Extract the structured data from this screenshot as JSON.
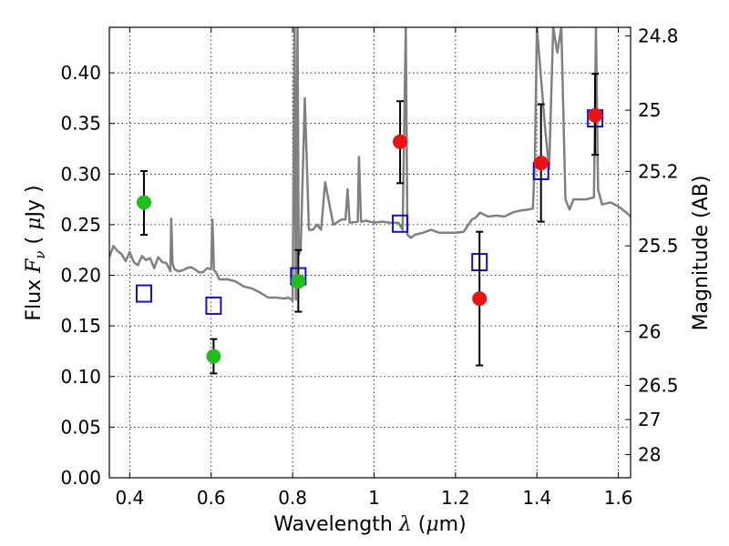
{
  "chart_data": {
    "type": "scatter",
    "x_axis": {
      "label_prefix": "Wavelength",
      "label_symbol": "λ",
      "label_unit_open": "(",
      "label_unit_mu": "μ",
      "label_unit_rest": "m)",
      "range": [
        0.35,
        1.63
      ],
      "ticks": [
        0.4,
        0.6,
        0.8,
        1.0,
        1.2,
        1.4,
        1.6
      ],
      "tick_labels": [
        "0.4",
        "0.6",
        "0.8",
        "1",
        "1.2",
        "1.4",
        "1.6"
      ]
    },
    "y_axis": {
      "label_prefix": "Flux",
      "label_symbol": "F",
      "label_subscript": "ν",
      "label_unit_open": "(",
      "label_unit_mu": "μ",
      "label_unit_rest": "Jy )",
      "range": [
        0.0,
        0.445
      ],
      "ticks": [
        0.0,
        0.05,
        0.1,
        0.15,
        0.2,
        0.25,
        0.3,
        0.35,
        0.4
      ],
      "tick_labels": [
        "0.00",
        "0.05",
        "0.10",
        "0.15",
        "0.20",
        "0.25",
        "0.30",
        "0.35",
        "0.40"
      ]
    },
    "y2_axis": {
      "label": "Magnitude (AB)",
      "ticks": [
        {
          "flux": 0.4365,
          "label": "24.8"
        },
        {
          "flux": 0.3631,
          "label": "25"
        },
        {
          "flux": 0.3027,
          "label": "25.2"
        },
        {
          "flux": 0.2291,
          "label": "25.5"
        },
        {
          "flux": 0.1445,
          "label": "26"
        },
        {
          "flux": 0.0912,
          "label": "26.5"
        },
        {
          "flux": 0.0575,
          "label": "27"
        },
        {
          "flux": 0.0229,
          "label": "28"
        }
      ]
    },
    "grid": true,
    "series": [
      {
        "name": "photometry-green",
        "marker": "circle",
        "color": "#1fbf1f",
        "points": [
          {
            "x": 0.435,
            "y": 0.272,
            "err_low": 0.24,
            "err_high": 0.303
          },
          {
            "x": 0.606,
            "y": 0.12,
            "err_low": 0.103,
            "err_high": 0.137
          },
          {
            "x": 0.814,
            "y": 0.194,
            "err_low": 0.164,
            "err_high": 0.225
          }
        ]
      },
      {
        "name": "photometry-red",
        "marker": "circle",
        "color": "#ee1111",
        "points": [
          {
            "x": 1.064,
            "y": 0.332,
            "err_low": 0.291,
            "err_high": 0.372
          },
          {
            "x": 1.259,
            "y": 0.177,
            "err_low": 0.111,
            "err_high": 0.243
          },
          {
            "x": 1.41,
            "y": 0.311,
            "err_low": 0.253,
            "err_high": 0.369
          },
          {
            "x": 1.543,
            "y": 0.358,
            "err_low": 0.319,
            "err_high": 0.399
          }
        ]
      },
      {
        "name": "model-photometry",
        "marker": "open-square",
        "color": "#1111cc",
        "points": [
          {
            "x": 0.435,
            "y": 0.182
          },
          {
            "x": 0.606,
            "y": 0.17
          },
          {
            "x": 0.814,
            "y": 0.199
          },
          {
            "x": 1.064,
            "y": 0.251
          },
          {
            "x": 1.259,
            "y": 0.213
          },
          {
            "x": 1.41,
            "y": 0.303
          },
          {
            "x": 1.543,
            "y": 0.355
          }
        ]
      },
      {
        "name": "model-spectrum",
        "marker": "line",
        "color": "#808080",
        "x": [
          0.35,
          0.36,
          0.37,
          0.38,
          0.39,
          0.4,
          0.41,
          0.42,
          0.43,
          0.44,
          0.45,
          0.46,
          0.47,
          0.48,
          0.49,
          0.5,
          0.502,
          0.505,
          0.51,
          0.52,
          0.53,
          0.54,
          0.55,
          0.56,
          0.57,
          0.58,
          0.59,
          0.6,
          0.603,
          0.607,
          0.612,
          0.62,
          0.64,
          0.66,
          0.68,
          0.7,
          0.72,
          0.74,
          0.76,
          0.78,
          0.79,
          0.8,
          0.805,
          0.808,
          0.812,
          0.815,
          0.82,
          0.83,
          0.84,
          0.85,
          0.86,
          0.87,
          0.88,
          0.9,
          0.92,
          0.93,
          0.935,
          0.94,
          0.96,
          0.963,
          0.968,
          0.98,
          1.0,
          1.02,
          1.04,
          1.06,
          1.07,
          1.078,
          1.082,
          1.09,
          1.1,
          1.12,
          1.14,
          1.16,
          1.18,
          1.2,
          1.22,
          1.24,
          1.25,
          1.26,
          1.28,
          1.3,
          1.32,
          1.34,
          1.36,
          1.38,
          1.39,
          1.395,
          1.4,
          1.42,
          1.43,
          1.44,
          1.45,
          1.46,
          1.47,
          1.48,
          1.49,
          1.5,
          1.52,
          1.54,
          1.545,
          1.55,
          1.56,
          1.58,
          1.6,
          1.62,
          1.63
        ],
        "y": [
          0.218,
          0.229,
          0.224,
          0.221,
          0.214,
          0.223,
          0.213,
          0.21,
          0.219,
          0.215,
          0.217,
          0.207,
          0.218,
          0.213,
          0.212,
          0.204,
          0.256,
          0.212,
          0.206,
          0.204,
          0.205,
          0.207,
          0.208,
          0.206,
          0.203,
          0.203,
          0.207,
          0.206,
          0.255,
          0.205,
          0.203,
          0.196,
          0.196,
          0.194,
          0.189,
          0.187,
          0.183,
          0.178,
          0.178,
          0.177,
          0.178,
          0.175,
          0.445,
          0.176,
          0.445,
          0.22,
          0.226,
          0.375,
          0.245,
          0.245,
          0.25,
          0.245,
          0.292,
          0.25,
          0.255,
          0.255,
          0.285,
          0.252,
          0.253,
          0.317,
          0.253,
          0.254,
          0.252,
          0.253,
          0.252,
          0.252,
          0.245,
          0.445,
          0.24,
          0.237,
          0.24,
          0.242,
          0.245,
          0.242,
          0.242,
          0.242,
          0.243,
          0.255,
          0.257,
          0.262,
          0.258,
          0.259,
          0.258,
          0.262,
          0.264,
          0.265,
          0.266,
          0.315,
          0.445,
          0.345,
          0.305,
          0.445,
          0.42,
          0.445,
          0.275,
          0.265,
          0.275,
          0.275,
          0.275,
          0.277,
          0.445,
          0.285,
          0.27,
          0.272,
          0.268,
          0.262,
          0.258
        ]
      }
    ]
  }
}
